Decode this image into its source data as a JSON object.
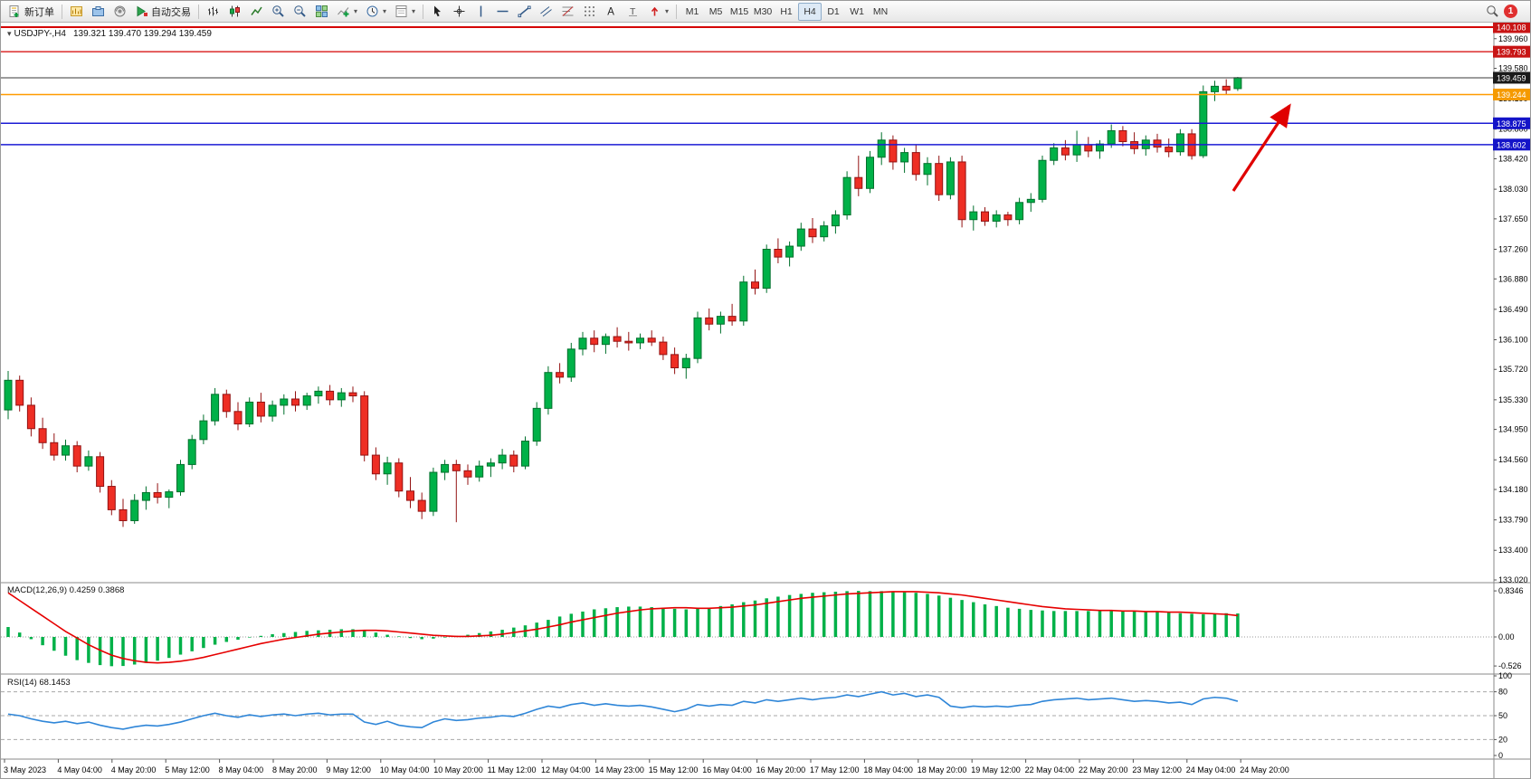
{
  "toolbar": {
    "new_order": "新订单",
    "auto_trading": "自动交易",
    "timeframes": [
      "M1",
      "M5",
      "M15",
      "M30",
      "H1",
      "H4",
      "D1",
      "W1",
      "MN"
    ],
    "active_timeframe": "H4",
    "notification_count": "1"
  },
  "chart": {
    "header": {
      "symbol_period": "USDJPY-,H4",
      "ohlc": "139.321 139.470 139.294 139.459"
    }
  },
  "chart_data": [
    {
      "type": "candlestick",
      "title": "USDJPY-,H4",
      "open": "139.321",
      "high": "139.470",
      "low": "139.294",
      "close": "139.459",
      "current_price": 139.459,
      "y_axis_ticks": [
        "139.960",
        "139.580",
        "139.190",
        "138.800",
        "138.420",
        "138.030",
        "137.650",
        "137.260",
        "136.880",
        "136.490",
        "136.100",
        "135.720",
        "135.330",
        "134.950",
        "134.560",
        "134.180",
        "133.790",
        "133.400",
        "133.020"
      ],
      "price_labels": [
        {
          "value": "140.108",
          "color": "#c81414"
        },
        {
          "value": "139.793",
          "color": "#c81414"
        },
        {
          "value": "139.459",
          "color": "#1a1a1a"
        },
        {
          "value": "139.244",
          "color": "#f59a00"
        },
        {
          "value": "138.875",
          "color": "#1414c8"
        },
        {
          "value": "138.602",
          "color": "#1414c8"
        }
      ],
      "hlines": [
        {
          "value": 140.108,
          "color": "#d40000",
          "width": 2
        },
        {
          "value": 139.793,
          "color": "#d40000",
          "width": 1.2
        },
        {
          "value": 139.244,
          "color": "#ff9c00",
          "width": 1.5
        },
        {
          "value": 138.875,
          "color": "#1b1bd4",
          "width": 1.5
        },
        {
          "value": 138.602,
          "color": "#1b1bd4",
          "width": 1.5
        }
      ],
      "annotations": [
        {
          "type": "trend-arrow",
          "color": "#e00000",
          "from": [
            1362,
            210
          ],
          "to": [
            1424,
            116
          ]
        }
      ],
      "x_labels": [
        "3 May 2023",
        "4 May 04:00",
        "4 May 20:00",
        "5 May 12:00",
        "8 May 04:00",
        "8 May 20:00",
        "9 May 12:00",
        "10 May 04:00",
        "10 May 20:00",
        "11 May 12:00",
        "12 May 04:00",
        "14 May 23:00",
        "15 May 12:00",
        "16 May 04:00",
        "16 May 20:00",
        "17 May 12:00",
        "18 May 04:00",
        "18 May 20:00",
        "19 May 12:00",
        "22 May 04:00",
        "22 May 20:00",
        "23 May 12:00",
        "24 May 04:00",
        "24 May 20:00"
      ],
      "candles": [
        [
          135.2,
          135.7,
          135.08,
          135.58
        ],
        [
          135.58,
          135.64,
          135.18,
          135.26
        ],
        [
          135.26,
          135.36,
          134.86,
          134.96
        ],
        [
          134.96,
          135.1,
          134.7,
          134.78
        ],
        [
          134.78,
          134.9,
          134.55,
          134.62
        ],
        [
          134.62,
          134.82,
          134.55,
          134.74
        ],
        [
          134.74,
          134.8,
          134.4,
          134.48
        ],
        [
          134.48,
          134.68,
          134.42,
          134.6
        ],
        [
          134.6,
          134.66,
          134.14,
          134.22
        ],
        [
          134.22,
          134.3,
          133.85,
          133.92
        ],
        [
          133.92,
          134.06,
          133.7,
          133.78
        ],
        [
          133.78,
          134.12,
          133.74,
          134.04
        ],
        [
          134.04,
          134.22,
          133.92,
          134.14
        ],
        [
          134.14,
          134.26,
          134.0,
          134.08
        ],
        [
          134.08,
          134.18,
          133.94,
          134.15
        ],
        [
          134.15,
          134.56,
          134.1,
          134.5
        ],
        [
          134.5,
          134.88,
          134.44,
          134.82
        ],
        [
          134.82,
          135.14,
          134.76,
          135.06
        ],
        [
          135.06,
          135.48,
          135.0,
          135.4
        ],
        [
          135.4,
          135.46,
          135.1,
          135.18
        ],
        [
          135.18,
          135.3,
          134.94,
          135.02
        ],
        [
          135.02,
          135.36,
          134.98,
          135.3
        ],
        [
          135.3,
          135.42,
          135.04,
          135.12
        ],
        [
          135.12,
          135.32,
          135.05,
          135.26
        ],
        [
          135.26,
          135.4,
          135.14,
          135.34
        ],
        [
          135.34,
          135.44,
          135.18,
          135.26
        ],
        [
          135.26,
          135.42,
          135.2,
          135.38
        ],
        [
          135.38,
          135.5,
          135.28,
          135.44
        ],
        [
          135.44,
          135.52,
          135.26,
          135.33
        ],
        [
          135.33,
          135.48,
          135.24,
          135.42
        ],
        [
          135.42,
          135.5,
          135.3,
          135.38
        ],
        [
          135.38,
          135.44,
          134.54,
          134.62
        ],
        [
          134.62,
          134.72,
          134.3,
          134.38
        ],
        [
          134.38,
          134.6,
          134.24,
          134.52
        ],
        [
          134.52,
          134.58,
          134.08,
          134.16
        ],
        [
          134.16,
          134.34,
          133.94,
          134.04
        ],
        [
          134.04,
          134.14,
          133.8,
          133.9
        ],
        [
          133.9,
          134.46,
          133.84,
          134.4
        ],
        [
          134.4,
          134.56,
          134.3,
          134.5
        ],
        [
          134.5,
          134.56,
          133.76,
          134.42
        ],
        [
          134.42,
          134.5,
          134.24,
          134.34
        ],
        [
          134.34,
          134.55,
          134.28,
          134.48
        ],
        [
          134.48,
          134.58,
          134.34,
          134.52
        ],
        [
          134.52,
          134.7,
          134.44,
          134.62
        ],
        [
          134.62,
          134.68,
          134.4,
          134.48
        ],
        [
          134.48,
          134.86,
          134.44,
          134.8
        ],
        [
          134.8,
          135.3,
          134.74,
          135.22
        ],
        [
          135.22,
          135.76,
          135.14,
          135.68
        ],
        [
          135.68,
          135.8,
          135.54,
          135.62
        ],
        [
          135.62,
          136.06,
          135.56,
          135.98
        ],
        [
          135.98,
          136.2,
          135.9,
          136.12
        ],
        [
          136.12,
          136.22,
          135.94,
          136.04
        ],
        [
          136.04,
          136.18,
          135.92,
          136.14
        ],
        [
          136.14,
          136.26,
          136.0,
          136.08
        ],
        [
          136.08,
          136.2,
          135.96,
          136.06
        ],
        [
          136.06,
          136.18,
          135.98,
          136.12
        ],
        [
          136.12,
          136.22,
          136.02,
          136.07
        ],
        [
          136.07,
          136.14,
          135.84,
          135.91
        ],
        [
          135.91,
          136.0,
          135.66,
          135.74
        ],
        [
          135.74,
          135.92,
          135.6,
          135.86
        ],
        [
          135.86,
          136.46,
          135.8,
          136.38
        ],
        [
          136.38,
          136.5,
          136.22,
          136.3
        ],
        [
          136.3,
          136.46,
          136.18,
          136.4
        ],
        [
          136.4,
          136.56,
          136.28,
          136.34
        ],
        [
          136.34,
          136.92,
          136.28,
          136.84
        ],
        [
          136.84,
          137.0,
          136.68,
          136.76
        ],
        [
          136.76,
          137.32,
          136.7,
          137.26
        ],
        [
          137.26,
          137.4,
          137.08,
          137.16
        ],
        [
          137.16,
          137.36,
          137.04,
          137.3
        ],
        [
          137.3,
          137.6,
          137.24,
          137.52
        ],
        [
          137.52,
          137.66,
          137.34,
          137.42
        ],
        [
          137.42,
          137.62,
          137.36,
          137.56
        ],
        [
          137.56,
          137.76,
          137.46,
          137.7
        ],
        [
          137.7,
          138.26,
          137.64,
          138.18
        ],
        [
          138.18,
          138.46,
          137.94,
          138.04
        ],
        [
          138.04,
          138.52,
          137.98,
          138.44
        ],
        [
          138.44,
          138.76,
          138.34,
          138.66
        ],
        [
          138.66,
          138.72,
          138.28,
          138.38
        ],
        [
          138.38,
          138.56,
          138.24,
          138.5
        ],
        [
          138.5,
          138.6,
          138.14,
          138.22
        ],
        [
          138.22,
          138.44,
          138.08,
          138.36
        ],
        [
          138.36,
          138.46,
          137.88,
          137.96
        ],
        [
          137.96,
          138.44,
          137.9,
          138.38
        ],
        [
          138.38,
          138.46,
          137.54,
          137.64
        ],
        [
          137.64,
          137.82,
          137.5,
          137.74
        ],
        [
          137.74,
          137.8,
          137.56,
          137.62
        ],
        [
          137.62,
          137.76,
          137.54,
          137.7
        ],
        [
          137.7,
          137.74,
          137.56,
          137.64
        ],
        [
          137.64,
          137.92,
          137.58,
          137.86
        ],
        [
          137.86,
          137.98,
          137.74,
          137.9
        ],
        [
          137.9,
          138.46,
          137.86,
          138.4
        ],
        [
          138.4,
          138.62,
          138.34,
          138.56
        ],
        [
          138.56,
          138.66,
          138.4,
          138.47
        ],
        [
          138.47,
          138.78,
          138.38,
          138.6
        ],
        [
          138.6,
          138.7,
          138.44,
          138.52
        ],
        [
          138.52,
          138.66,
          138.42,
          138.61
        ],
        [
          138.61,
          138.86,
          138.56,
          138.78
        ],
        [
          138.78,
          138.84,
          138.58,
          138.64
        ],
        [
          138.64,
          138.76,
          138.48,
          138.55
        ],
        [
          138.55,
          138.72,
          138.46,
          138.66
        ],
        [
          138.66,
          138.74,
          138.5,
          138.57
        ],
        [
          138.57,
          138.68,
          138.44,
          138.51
        ],
        [
          138.51,
          138.8,
          138.46,
          138.74
        ],
        [
          138.74,
          138.8,
          138.41,
          138.46
        ],
        [
          138.46,
          139.36,
          138.43,
          139.28
        ],
        [
          139.28,
          139.42,
          139.16,
          139.35
        ],
        [
          139.35,
          139.44,
          139.24,
          139.3
        ],
        [
          139.32,
          139.47,
          139.29,
          139.46
        ]
      ]
    },
    {
      "type": "macd",
      "label": "MACD(12,26,9) 0.4259 0.3868",
      "y_ticks": [
        {
          "label": "0.8346",
          "value": 0.8346
        },
        {
          "label": "0.00",
          "value": 0
        },
        {
          "label": "-0.526",
          "value": -0.526
        }
      ],
      "histogram": [
        0.18,
        0.08,
        -0.04,
        -0.15,
        -0.25,
        -0.34,
        -0.42,
        -0.47,
        -0.51,
        -0.53,
        -0.526,
        -0.5,
        -0.47,
        -0.43,
        -0.38,
        -0.32,
        -0.26,
        -0.2,
        -0.14,
        -0.09,
        -0.05,
        -0.01,
        0.02,
        0.05,
        0.07,
        0.09,
        0.11,
        0.12,
        0.13,
        0.14,
        0.14,
        0.12,
        0.08,
        0.04,
        0.01,
        -0.02,
        -0.04,
        -0.03,
        -0.01,
        0.02,
        0.04,
        0.07,
        0.1,
        0.13,
        0.17,
        0.21,
        0.26,
        0.31,
        0.37,
        0.42,
        0.46,
        0.5,
        0.52,
        0.54,
        0.55,
        0.55,
        0.54,
        0.53,
        0.51,
        0.5,
        0.51,
        0.53,
        0.56,
        0.59,
        0.63,
        0.66,
        0.7,
        0.73,
        0.76,
        0.78,
        0.8,
        0.81,
        0.82,
        0.83,
        0.8346,
        0.83,
        0.83,
        0.82,
        0.81,
        0.8,
        0.78,
        0.75,
        0.71,
        0.67,
        0.63,
        0.59,
        0.56,
        0.53,
        0.51,
        0.49,
        0.48,
        0.47,
        0.47,
        0.47,
        0.47,
        0.47,
        0.47,
        0.46,
        0.46,
        0.45,
        0.45,
        0.44,
        0.43,
        0.42,
        0.41,
        0.42,
        0.43,
        0.4259
      ],
      "signal": [
        0.8,
        0.66,
        0.52,
        0.38,
        0.24,
        0.1,
        -0.02,
        -0.14,
        -0.24,
        -0.33,
        -0.39,
        -0.43,
        -0.46,
        -0.47,
        -0.46,
        -0.44,
        -0.41,
        -0.37,
        -0.32,
        -0.27,
        -0.22,
        -0.17,
        -0.12,
        -0.08,
        -0.04,
        -0.01,
        0.02,
        0.05,
        0.07,
        0.09,
        0.11,
        0.12,
        0.12,
        0.11,
        0.09,
        0.07,
        0.05,
        0.03,
        0.02,
        0.01,
        0.01,
        0.02,
        0.03,
        0.05,
        0.08,
        0.11,
        0.14,
        0.18,
        0.22,
        0.27,
        0.31,
        0.35,
        0.39,
        0.43,
        0.46,
        0.49,
        0.51,
        0.52,
        0.53,
        0.53,
        0.52,
        0.52,
        0.53,
        0.54,
        0.56,
        0.58,
        0.61,
        0.64,
        0.67,
        0.7,
        0.72,
        0.74,
        0.76,
        0.78,
        0.79,
        0.8,
        0.81,
        0.82,
        0.82,
        0.82,
        0.81,
        0.8,
        0.78,
        0.76,
        0.73,
        0.7,
        0.67,
        0.64,
        0.61,
        0.58,
        0.55,
        0.53,
        0.51,
        0.5,
        0.49,
        0.48,
        0.48,
        0.47,
        0.47,
        0.46,
        0.46,
        0.45,
        0.45,
        0.44,
        0.43,
        0.42,
        0.41,
        0.3868
      ]
    },
    {
      "type": "rsi",
      "label": "RSI(14) 68.1453",
      "y_ticks": [
        {
          "label": "100",
          "value": 100
        },
        {
          "label": "80",
          "value": 80
        },
        {
          "label": "50",
          "value": 50
        },
        {
          "label": "20",
          "value": 20
        },
        {
          "label": "0",
          "value": 0
        }
      ],
      "levels": [
        80,
        50,
        20
      ],
      "values": [
        52,
        50,
        46,
        43,
        41,
        43,
        40,
        42,
        38,
        35,
        33,
        36,
        38,
        37,
        39,
        42,
        46,
        50,
        53,
        50,
        48,
        51,
        49,
        51,
        52,
        50,
        52,
        53,
        51,
        52,
        52,
        42,
        39,
        43,
        38,
        36,
        35,
        42,
        46,
        44,
        45,
        47,
        48,
        50,
        49,
        53,
        58,
        62,
        60,
        64,
        66,
        63,
        65,
        63,
        62,
        63,
        61,
        58,
        55,
        58,
        64,
        62,
        64,
        63,
        68,
        66,
        70,
        68,
        70,
        72,
        70,
        72,
        73,
        76,
        74,
        77,
        80,
        76,
        78,
        74,
        76,
        73,
        62,
        60,
        62,
        61,
        62,
        61,
        63,
        64,
        68,
        70,
        71,
        72,
        70,
        71,
        72,
        70,
        68,
        69,
        68,
        66,
        67,
        64,
        71,
        73,
        72,
        68.1
      ]
    }
  ]
}
